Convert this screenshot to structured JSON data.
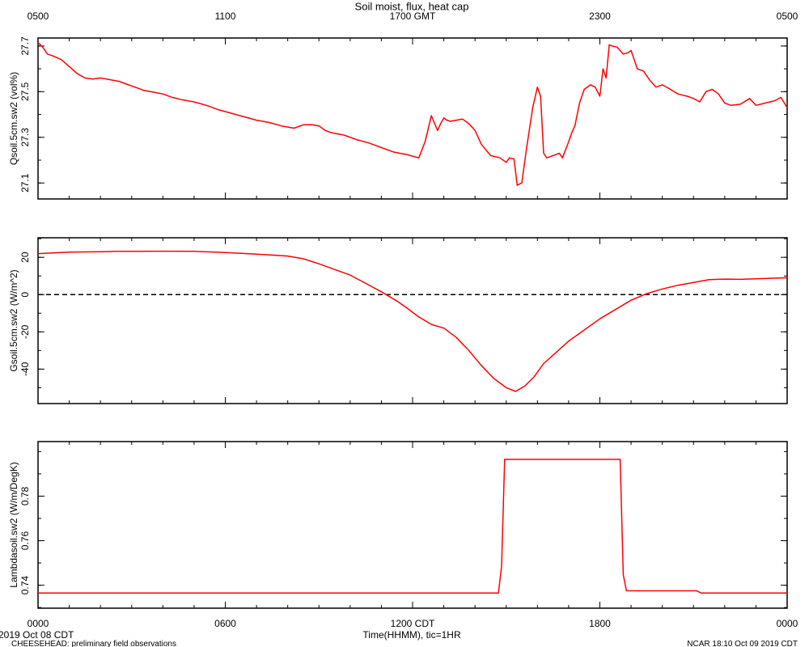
{
  "title": "Soil moist, flux, heat cap",
  "x_axis": {
    "top_ticks": [
      "0500",
      "1100",
      "1700 GMT",
      "2300",
      "0500"
    ],
    "bottom_ticks": [
      "0000",
      "0600",
      "1200 CDT",
      "1800",
      "0000"
    ],
    "label": "Time(HHMM), tic=1HR",
    "range_hours": [
      0,
      24
    ],
    "major_every_hours": 6,
    "minor_every_hours": 1,
    "start_date": "2019 Oct 08 CDT"
  },
  "footer": {
    "left": "CHEESEHEAD: preliminary field observations",
    "right": "NCAR 18:10 Oct 09 2019 CDT"
  },
  "line_color": "#ff0000",
  "chart_data": [
    {
      "type": "line",
      "ylabel": "Qsoil.5cm.sw2 (vol%)",
      "ylim": [
        27.03,
        27.735
      ],
      "yticks": [
        27.1,
        27.3,
        27.5,
        27.7
      ],
      "yticklabels": [
        "27.1",
        "27.3",
        "27.5",
        "27.7"
      ],
      "minor_step": 0.1,
      "zero_line": false,
      "series": [
        {
          "x": [
            0,
            0.15,
            0.3,
            0.5,
            0.75,
            1.0,
            1.25,
            1.5,
            1.75,
            2.0,
            2.2,
            2.4,
            2.6,
            2.8,
            3.0,
            3.2,
            3.4,
            3.6,
            3.8,
            4.0,
            4.3,
            4.6,
            5.0,
            5.4,
            5.8,
            6.2,
            6.6,
            7.0,
            7.4,
            7.8,
            8.2,
            8.5,
            8.8,
            9.0,
            9.2,
            9.4,
            9.8,
            10.2,
            10.6,
            11.0,
            11.4,
            11.8,
            12.2,
            12.4,
            12.6,
            12.8,
            12.9,
            13.0,
            13.1,
            13.2,
            13.4,
            13.6,
            13.8,
            14.0,
            14.2,
            14.5,
            14.8,
            15.0,
            15.1,
            15.25,
            15.35,
            15.5,
            15.65,
            15.85,
            16.0,
            16.1,
            16.2,
            16.3,
            16.5,
            16.7,
            16.8,
            17.0,
            17.1,
            17.2,
            17.35,
            17.5,
            17.7,
            17.85,
            18.0,
            18.1,
            18.2,
            18.3,
            18.4,
            18.55,
            18.75,
            18.9,
            19.0,
            19.2,
            19.4,
            19.6,
            19.8,
            20.0,
            20.2,
            20.5,
            20.8,
            21.0,
            21.2,
            21.4,
            21.6,
            21.8,
            22.0,
            22.2,
            22.5,
            22.8,
            23.0,
            23.3,
            23.6,
            23.8,
            24.0
          ],
          "y": [
            27.715,
            27.695,
            27.665,
            27.655,
            27.64,
            27.61,
            27.58,
            27.56,
            27.555,
            27.56,
            27.555,
            27.55,
            27.545,
            27.535,
            27.525,
            27.515,
            27.505,
            27.5,
            27.495,
            27.49,
            27.475,
            27.465,
            27.455,
            27.44,
            27.42,
            27.405,
            27.39,
            27.375,
            27.365,
            27.35,
            27.34,
            27.355,
            27.355,
            27.35,
            27.33,
            27.32,
            27.31,
            27.29,
            27.275,
            27.255,
            27.235,
            27.225,
            27.21,
            27.28,
            27.395,
            27.33,
            27.36,
            27.385,
            27.375,
            27.37,
            27.375,
            27.38,
            27.36,
            27.33,
            27.27,
            27.22,
            27.21,
            27.19,
            27.21,
            27.205,
            27.09,
            27.1,
            27.25,
            27.43,
            27.52,
            27.48,
            27.23,
            27.21,
            27.22,
            27.23,
            27.21,
            27.28,
            27.32,
            27.35,
            27.45,
            27.51,
            27.53,
            27.52,
            27.48,
            27.6,
            27.56,
            27.705,
            27.7,
            27.695,
            27.665,
            27.67,
            27.68,
            27.6,
            27.59,
            27.55,
            27.52,
            27.53,
            27.515,
            27.49,
            27.48,
            27.47,
            27.455,
            27.5,
            27.51,
            27.49,
            27.45,
            27.44,
            27.445,
            27.47,
            27.44,
            27.45,
            27.46,
            27.475,
            27.43
          ]
        }
      ]
    },
    {
      "type": "line",
      "ylabel": "Gsoil.5cm.sw2 (W/m^2)",
      "ylim": [
        -58.5,
        30.5
      ],
      "yticks": [
        20,
        0,
        -20,
        -40
      ],
      "yticklabels": [
        "20",
        "0",
        "-20",
        "-40"
      ],
      "minor_step": 10,
      "zero_line": true,
      "series": [
        {
          "x": [
            0,
            1,
            2,
            2.5,
            3,
            4,
            5,
            6,
            7,
            7.5,
            8,
            8.5,
            9,
            9.5,
            10,
            10.5,
            11,
            11.5,
            11.8,
            12.2,
            12.6,
            13.0,
            13.4,
            13.8,
            14.2,
            14.6,
            15.0,
            15.3,
            15.6,
            15.9,
            16.2,
            16.6,
            17.0,
            17.5,
            18.0,
            18.5,
            19.0,
            19.5,
            20.0,
            20.5,
            21.0,
            21.5,
            22.0,
            22.5,
            23.0,
            23.5,
            24.0
          ],
          "y": [
            22,
            22.8,
            23,
            23.2,
            23.2,
            23.3,
            23.2,
            22.6,
            21.7,
            21.2,
            20.7,
            19.2,
            16.5,
            13.5,
            10.5,
            6,
            1.5,
            -3.5,
            -7,
            -12,
            -16,
            -18,
            -23,
            -30,
            -38,
            -45,
            -50,
            -52,
            -49,
            -44,
            -37,
            -31,
            -25,
            -19,
            -13,
            -8,
            -3,
            0.5,
            3,
            5,
            6.5,
            8,
            8.3,
            8.2,
            8.5,
            8.8,
            9
          ]
        }
      ]
    },
    {
      "type": "line",
      "ylabel": "Lambdasoil.sw2 (W/m/DegK)",
      "ylim": [
        0.7297,
        0.8045
      ],
      "yticks": [
        0.74,
        0.76,
        0.78
      ],
      "yticklabels": [
        "0.74",
        "0.76",
        "0.78"
      ],
      "minor_step": 0.01,
      "zero_line": false,
      "series": [
        {
          "x": [
            0,
            14.75,
            14.85,
            14.95,
            18.65,
            18.75,
            18.85,
            21.1,
            21.25,
            24.0
          ],
          "y": [
            0.7365,
            0.7365,
            0.7485,
            0.7965,
            0.7965,
            0.7448,
            0.7375,
            0.7375,
            0.7365,
            0.7365
          ]
        }
      ]
    }
  ]
}
